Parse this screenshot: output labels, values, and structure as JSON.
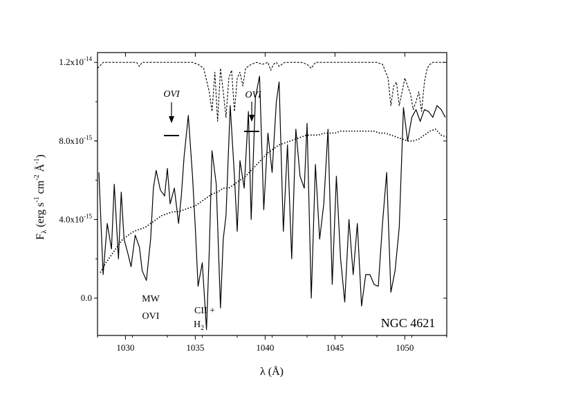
{
  "chart_data": {
    "type": "line",
    "xlabel": "λ (Å)",
    "ylabel": "Fλ (erg s⁻¹ cm⁻² Å⁻¹)",
    "ylabel_parts": {
      "base": "F",
      "sub": "λ",
      "mid1": " (erg s",
      "e1": "-1",
      "mid2": " cm",
      "e2": "-2",
      "mid3": " Å",
      "e3": "-1",
      "end": ")"
    },
    "xlim": [
      1028,
      1053
    ],
    "ylim": [
      -1.9e-15,
      1.25e-14
    ],
    "x_ticks": [
      1030,
      1035,
      1040,
      1045,
      1050
    ],
    "x_tick_labels": [
      "1030",
      "1035",
      "1040",
      "1045",
      "1050"
    ],
    "y_ticks": [
      0,
      4e-15,
      8e-15,
      1.2e-14
    ],
    "y_tick_labels": [
      {
        "base": "0.0",
        "exp": ""
      },
      {
        "base": "4.0x10",
        "exp": "-15"
      },
      {
        "base": "8.0x10",
        "exp": "-15"
      },
      {
        "base": "1.2x10",
        "exp": "-14"
      }
    ],
    "grid": false,
    "annotations": {
      "galaxy": "NGC 4621",
      "mw_line1": "MW",
      "mw_line2": "OVI",
      "c2_label": "CII +",
      "h2_base": "H",
      "h2_sub": "2",
      "ovi_1": "OVI",
      "ovi_2": "OVI"
    },
    "series": [
      {
        "style": "solid",
        "x": [
          1028.1,
          1028.4,
          1028.7,
          1029.0,
          1029.2,
          1029.5,
          1029.7,
          1029.9,
          1030.2,
          1030.4,
          1030.7,
          1031.0,
          1031.2,
          1031.5,
          1031.8,
          1032.0,
          1032.2,
          1032.5,
          1032.8,
          1033.0,
          1033.2,
          1033.5,
          1033.8,
          1034.0,
          1034.2,
          1034.5,
          1034.8,
          1035.0,
          1035.2,
          1035.5,
          1035.8,
          1036.0,
          1036.2,
          1036.5,
          1036.8,
          1037.0,
          1037.2,
          1037.5,
          1037.8,
          1038.0,
          1038.2,
          1038.5,
          1038.8,
          1039.0,
          1039.3,
          1039.6,
          1039.9,
          1040.2,
          1040.5,
          1040.8,
          1041.0,
          1041.3,
          1041.6,
          1041.9,
          1042.2,
          1042.5,
          1042.8,
          1043.0,
          1043.3,
          1043.6,
          1043.9,
          1044.2,
          1044.5,
          1044.8,
          1045.1,
          1045.4,
          1045.7,
          1046.0,
          1046.3,
          1046.6,
          1046.9,
          1047.2,
          1047.5,
          1047.8,
          1048.1,
          1048.4,
          1048.7,
          1049.0,
          1049.3,
          1049.6,
          1049.9,
          1050.2,
          1050.5,
          1050.8,
          1051.1,
          1051.4,
          1051.7,
          1052.0,
          1052.3,
          1052.6,
          1052.9
        ],
        "y": [
          6.4e-15,
          1.2e-15,
          3.8e-15,
          2.5e-15,
          5.8e-15,
          2e-15,
          5.4e-15,
          3e-15,
          2.2e-15,
          1.6e-15,
          3.2e-15,
          2.6e-15,
          1.4e-15,
          9e-16,
          3e-15,
          5.6e-15,
          6.5e-15,
          5.5e-15,
          5.2e-15,
          6.6e-15,
          4.8e-15,
          5.6e-15,
          3.8e-15,
          5.2e-15,
          7.2e-15,
          9.3e-15,
          6.2e-15,
          3.6e-15,
          6e-16,
          1.8e-15,
          -1.6e-15,
          2.4e-15,
          7.5e-15,
          5.8e-15,
          -5e-16,
          3e-15,
          4.2e-15,
          9.8e-15,
          6.2e-15,
          3.4e-15,
          7e-15,
          5.6e-15,
          9.5e-15,
          4e-15,
          1.02e-14,
          1.13e-14,
          4.5e-15,
          8.4e-15,
          6.4e-15,
          1e-14,
          1.1e-14,
          3.4e-15,
          7.8e-15,
          2e-15,
          8.6e-15,
          6.2e-15,
          5.6e-15,
          8.9e-15,
          0.0,
          6.8e-15,
          3e-15,
          4.8e-15,
          8.6e-15,
          7e-16,
          6.2e-15,
          2e-15,
          -2e-16,
          4e-15,
          1.2e-15,
          3.8e-15,
          -4e-16,
          1.2e-15,
          1.2e-15,
          7e-16,
          6e-16,
          3.8e-15,
          6.4e-15,
          3e-16,
          1.4e-15,
          3.6e-15,
          9.7e-15,
          8e-15,
          9.2e-15,
          9.6e-15,
          9e-15,
          9.6e-15,
          9.5e-15,
          9.2e-15,
          9.8e-15,
          9.6e-15,
          9.2e-15
        ]
      },
      {
        "style": "dotted",
        "x": [
          1028.2,
          1028.6,
          1029.0,
          1029.4,
          1029.8,
          1030.2,
          1030.6,
          1031.0,
          1031.4,
          1031.8,
          1032.2,
          1032.6,
          1033.0,
          1033.4,
          1033.8,
          1034.2,
          1034.6,
          1035.0,
          1035.4,
          1035.8,
          1036.2,
          1036.6,
          1037.0,
          1037.4,
          1037.8,
          1038.2,
          1038.6,
          1039.0,
          1039.4,
          1039.8,
          1040.2,
          1040.6,
          1041.0,
          1041.4,
          1041.8,
          1042.2,
          1042.6,
          1043.0,
          1043.4,
          1043.8,
          1044.2,
          1044.6,
          1045.0,
          1045.4,
          1045.8,
          1046.2,
          1046.6,
          1047.0,
          1047.4,
          1047.8,
          1048.2,
          1048.6,
          1049.0,
          1049.4,
          1049.8,
          1050.2,
          1050.6,
          1051.0,
          1051.4,
          1051.8,
          1052.2,
          1052.6,
          1053.0
        ],
        "y": [
          1.3e-15,
          1.8e-15,
          2.2e-15,
          2.6e-15,
          3e-15,
          3.2e-15,
          3.4e-15,
          3.5e-15,
          3.6e-15,
          3.8e-15,
          4e-15,
          4.2e-15,
          4.3e-15,
          4.4e-15,
          4.4e-15,
          4.5e-15,
          4.6e-15,
          4.7e-15,
          4.9e-15,
          5.1e-15,
          5.3e-15,
          5.4e-15,
          5.6e-15,
          5.6e-15,
          5.8e-15,
          6e-15,
          6.2e-15,
          6.5e-15,
          6.8e-15,
          7.1e-15,
          7.4e-15,
          7.6e-15,
          7.8e-15,
          7.9e-15,
          8e-15,
          8.1e-15,
          8.2e-15,
          8.3e-15,
          8.3e-15,
          8.3e-15,
          8.4e-15,
          8.4e-15,
          8.4e-15,
          8.5e-15,
          8.5e-15,
          8.5e-15,
          8.5e-15,
          8.5e-15,
          8.5e-15,
          8.5e-15,
          8.4e-15,
          8.4e-15,
          8.3e-15,
          8.2e-15,
          8.1e-15,
          8e-15,
          8e-15,
          8.1e-15,
          8.3e-15,
          8.5e-15,
          8.6e-15,
          8.3e-15,
          8.2e-15
        ]
      },
      {
        "style": "dashed",
        "x": [
          1028.0,
          1028.4,
          1028.8,
          1029.2,
          1029.6,
          1030.0,
          1030.4,
          1030.8,
          1031.0,
          1031.2,
          1031.6,
          1032.0,
          1032.4,
          1032.8,
          1033.2,
          1033.6,
          1034.0,
          1034.4,
          1034.8,
          1035.2,
          1035.6,
          1036.0,
          1036.2,
          1036.4,
          1036.6,
          1036.8,
          1037.0,
          1037.2,
          1037.4,
          1037.6,
          1037.8,
          1038.0,
          1038.2,
          1038.4,
          1038.6,
          1038.8,
          1039.0,
          1039.4,
          1039.8,
          1040.2,
          1040.4,
          1040.6,
          1040.8,
          1041.0,
          1041.4,
          1041.8,
          1042.2,
          1042.6,
          1043.0,
          1043.3,
          1043.6,
          1044.0,
          1044.4,
          1044.8,
          1045.2,
          1045.6,
          1046.0,
          1046.4,
          1046.8,
          1047.2,
          1047.6,
          1048.0,
          1048.4,
          1048.8,
          1049.0,
          1049.2,
          1049.4,
          1049.6,
          1049.8,
          1050.0,
          1050.2,
          1050.4,
          1050.6,
          1050.8,
          1051.0,
          1051.2,
          1051.4,
          1051.6,
          1051.8,
          1052.0,
          1052.4,
          1052.8,
          1053.0
        ],
        "y": [
          1.17e-14,
          1.2e-14,
          1.2e-14,
          1.2e-14,
          1.2e-14,
          1.2e-14,
          1.2e-14,
          1.2e-14,
          1.18e-14,
          1.2e-14,
          1.2e-14,
          1.2e-14,
          1.2e-14,
          1.2e-14,
          1.2e-14,
          1.2e-14,
          1.2e-14,
          1.2e-14,
          1.2e-14,
          1.19e-14,
          1.17e-14,
          1.05e-14,
          9.5e-15,
          1.15e-14,
          9e-15,
          1.17e-14,
          1.05e-14,
          9.2e-15,
          1.12e-14,
          1.16e-14,
          9.5e-15,
          1.12e-14,
          1.15e-14,
          1.08e-14,
          1.17e-14,
          1.18e-14,
          1.19e-14,
          1.2e-14,
          1.19e-14,
          1.2e-14,
          1.16e-14,
          1.19e-14,
          1.2e-14,
          1.18e-14,
          1.2e-14,
          1.2e-14,
          1.2e-14,
          1.2e-14,
          1.19e-14,
          1.17e-14,
          1.2e-14,
          1.2e-14,
          1.2e-14,
          1.2e-14,
          1.2e-14,
          1.2e-14,
          1.2e-14,
          1.2e-14,
          1.2e-14,
          1.2e-14,
          1.2e-14,
          1.2e-14,
          1.19e-14,
          1.12e-14,
          9.8e-15,
          1.08e-14,
          1.1e-14,
          9.8e-15,
          1.05e-14,
          1.12e-14,
          1.08e-14,
          1.04e-14,
          9.6e-15,
          1e-14,
          1.05e-14,
          9.5e-15,
          1.1e-14,
          1.17e-14,
          1.19e-14,
          1.2e-14,
          1.2e-14,
          1.2e-14,
          1.2e-14
        ]
      }
    ]
  }
}
